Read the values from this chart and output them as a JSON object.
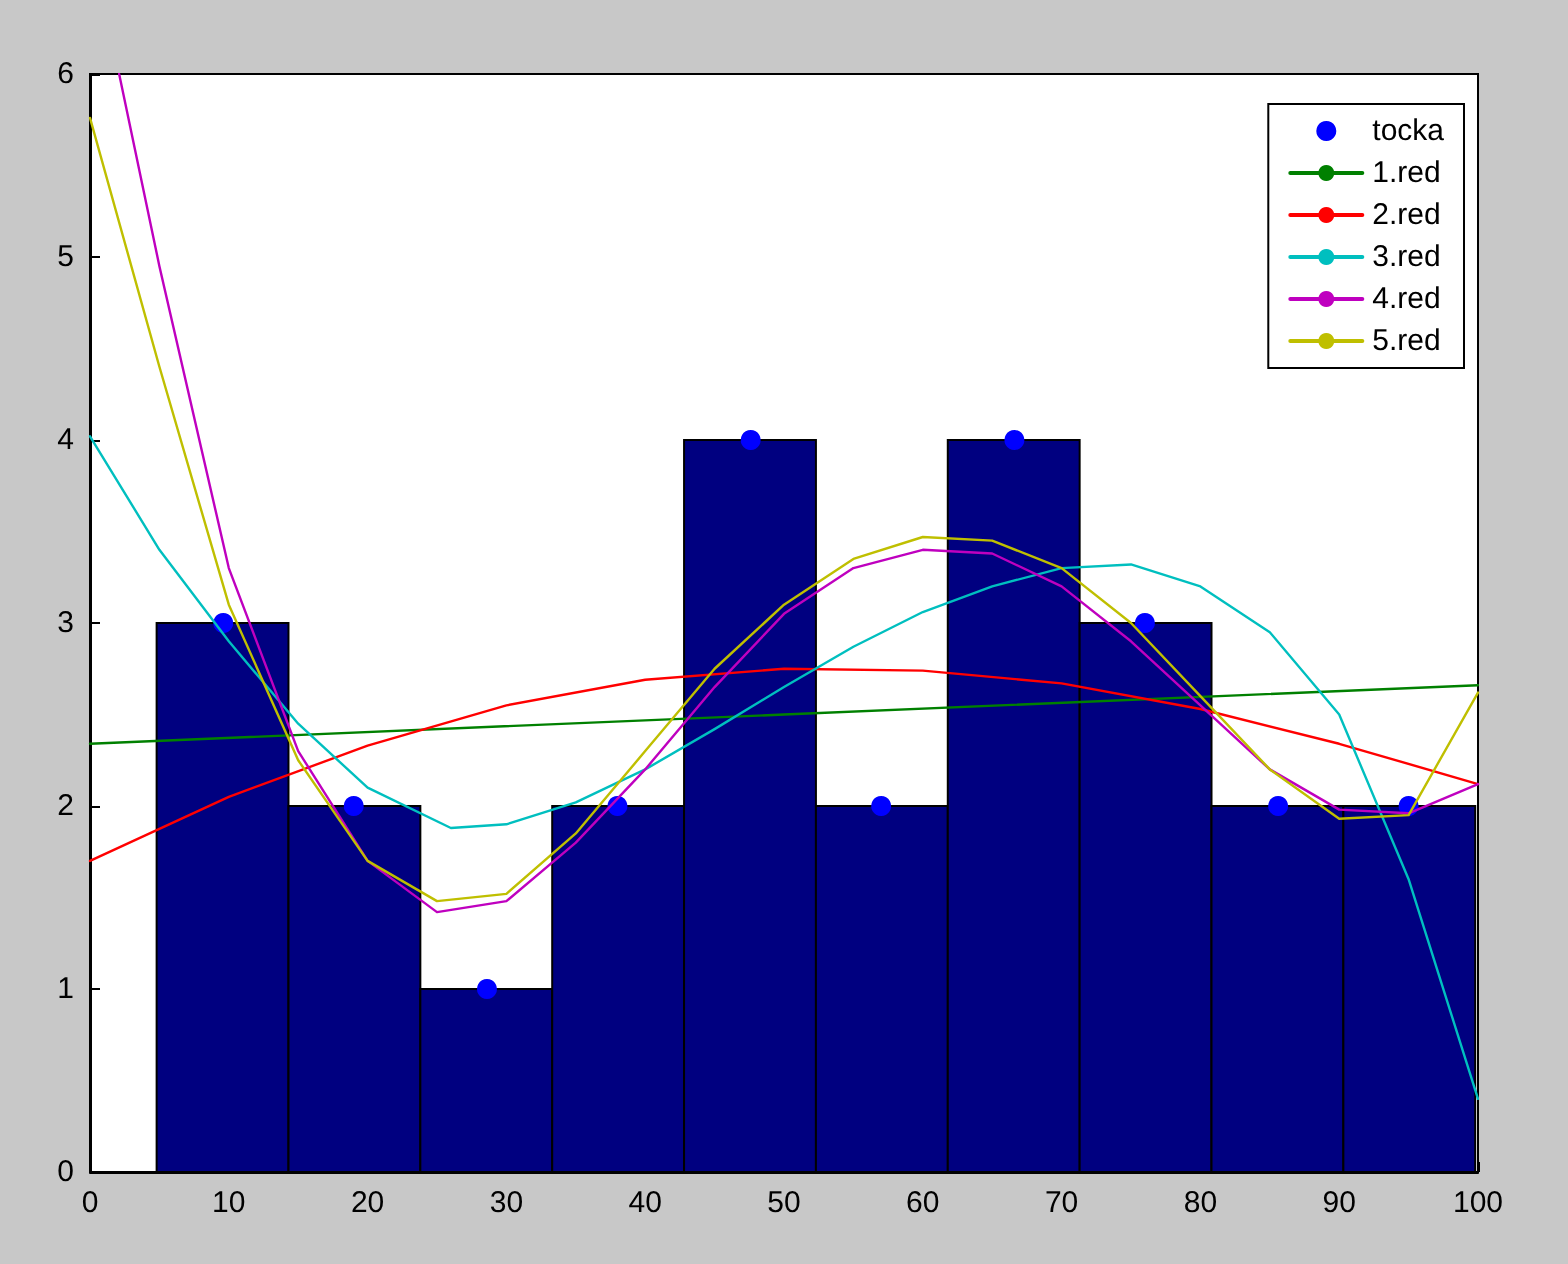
{
  "chart_data": {
    "type": "histogram",
    "bins": [
      4.8,
      14.3,
      23.8,
      33.3,
      42.8,
      52.3,
      61.8,
      71.3,
      80.8,
      90.3,
      99.8
    ],
    "values": [
      3,
      2,
      1,
      2,
      4,
      2,
      4,
      3,
      2,
      2
    ],
    "color": "#000080",
    "xlim": [
      0,
      100
    ],
    "xticks": [
      0,
      10,
      20,
      30,
      40,
      50,
      60,
      70,
      80,
      90,
      100
    ],
    "ylim": [
      0,
      6
    ],
    "yticks": [
      0,
      1,
      2,
      3,
      4,
      5,
      6
    ],
    "grid": false,
    "legend": "top right",
    "series": [
      {
        "type": "scatter",
        "name": "tocka",
        "color": "#0000ff",
        "marker": "circle",
        "x": [
          9.6,
          19,
          28.6,
          38,
          47.6,
          57,
          66.6,
          76,
          85.6,
          95
        ],
        "values": [
          3,
          2,
          1,
          2,
          4,
          2,
          4,
          3,
          2,
          2
        ]
      },
      {
        "type": "line",
        "name": "1.red",
        "color": "#008000",
        "x": [
          0,
          50,
          100
        ],
        "values": [
          2.34,
          2.5,
          2.66
        ]
      },
      {
        "type": "line",
        "name": "2.red",
        "color": "#ff0000",
        "x": [
          0,
          10,
          20,
          30,
          40,
          50,
          60,
          70,
          80,
          90,
          100
        ],
        "values": [
          1.7,
          2.05,
          2.33,
          2.55,
          2.69,
          2.75,
          2.74,
          2.67,
          2.53,
          2.34,
          2.12
        ]
      },
      {
        "type": "line",
        "name": "3.red",
        "color": "#00bfbf",
        "x": [
          0,
          5,
          10,
          15,
          20,
          26,
          30,
          35,
          40,
          45,
          50,
          55,
          60,
          65,
          70,
          75,
          80,
          85,
          90,
          95,
          100
        ],
        "values": [
          4.02,
          3.4,
          2.9,
          2.45,
          2.1,
          1.88,
          1.9,
          2.02,
          2.2,
          2.42,
          2.65,
          2.87,
          3.06,
          3.2,
          3.3,
          3.32,
          3.2,
          2.95,
          2.5,
          1.6,
          0.4
        ]
      },
      {
        "type": "line",
        "name": "4.red",
        "color": "#bf00bf",
        "x": [
          2.1,
          5,
          10,
          15,
          20,
          25,
          30,
          35,
          40,
          45,
          50,
          55,
          60,
          65,
          70,
          75,
          80,
          85,
          90,
          95,
          100
        ],
        "values": [
          6,
          4.95,
          3.3,
          2.3,
          1.7,
          1.42,
          1.48,
          1.8,
          2.2,
          2.65,
          3.05,
          3.3,
          3.4,
          3.38,
          3.2,
          2.9,
          2.55,
          2.2,
          1.98,
          1.96,
          2.12
        ]
      },
      {
        "type": "line",
        "name": "5.red",
        "color": "#bfbf00",
        "x": [
          0,
          5,
          10,
          15,
          20,
          25,
          30,
          35,
          40,
          45,
          50,
          55,
          60,
          65,
          70,
          75,
          80,
          85,
          90,
          95,
          100
        ],
        "values": [
          5.76,
          4.4,
          3.1,
          2.25,
          1.7,
          1.48,
          1.52,
          1.85,
          2.3,
          2.75,
          3.1,
          3.35,
          3.47,
          3.45,
          3.3,
          3.0,
          2.6,
          2.2,
          1.93,
          1.95,
          2.62
        ]
      }
    ]
  }
}
